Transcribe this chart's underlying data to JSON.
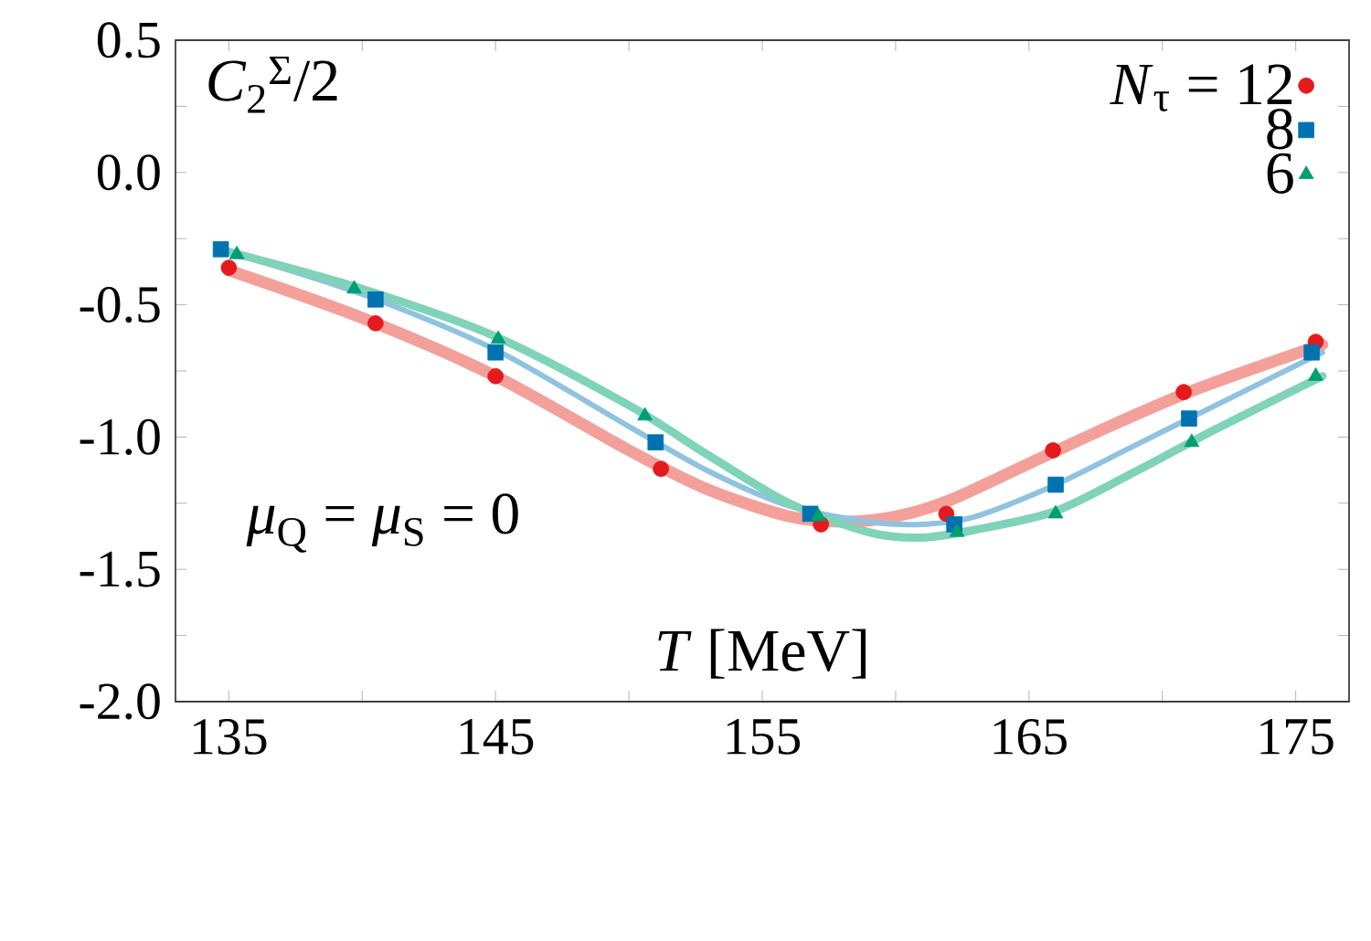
{
  "chart_data": {
    "type": "scatter",
    "ylabel": "*C*$_{2}$$^{Σ}$/2",
    "xlabel": "*T* [MeV]",
    "annotations": [
      "*μ*$_{Q}$ = *μ*$_{S}$ = 0"
    ],
    "xlim": [
      133,
      177
    ],
    "ylim": [
      -2.0,
      0.5
    ],
    "xticks": [
      135,
      {
        "value": 140,
        "label": null
      },
      145,
      {
        "value": 150,
        "label": null
      },
      155,
      {
        "value": 160,
        "label": null
      },
      165,
      {
        "value": 170,
        "label": null
      },
      175
    ],
    "yticks": [
      {
        "value": -2.0,
        "label": "-2.0"
      },
      {
        "value": -1.75,
        "label": null
      },
      {
        "value": -1.5,
        "label": "-1.5"
      },
      {
        "value": -1.25,
        "label": null
      },
      {
        "value": -1.0,
        "label": "-1.0"
      },
      {
        "value": -0.75,
        "label": null
      },
      {
        "value": -0.5,
        "label": "-0.5"
      },
      {
        "value": -0.25,
        "label": null
      },
      {
        "value": 0.0,
        "label": "0.0"
      },
      {
        "value": 0.25,
        "label": null
      },
      {
        "value": 0.5,
        "label": "0.5"
      }
    ],
    "legend": "top right",
    "grid": false,
    "series": [
      {
        "name": "*N*$_{τ}$ = 12",
        "marker": "circle",
        "color": "#e41a1c",
        "x": [
          135.0,
          140.5,
          145.0,
          151.2,
          157.2,
          161.9,
          165.9,
          170.8,
          175.75
        ],
        "values": [
          -0.36,
          -0.57,
          -0.77,
          -1.12,
          -1.33,
          -1.29,
          -1.05,
          -0.83,
          -0.64
        ]
      },
      {
        "name": "8",
        "marker": "square",
        "color": "#0072b2",
        "x": [
          134.7,
          140.5,
          145.0,
          151.0,
          156.8,
          162.2,
          166.0,
          171.0,
          175.6
        ],
        "values": [
          -0.29,
          -0.48,
          -0.68,
          -1.02,
          -1.29,
          -1.33,
          -1.18,
          -0.93,
          -0.68
        ]
      },
      {
        "name": "6",
        "marker": "triangle",
        "color": "#009e73",
        "x": [
          135.3,
          139.7,
          145.1,
          150.6,
          157.1,
          162.3,
          166.0,
          171.1,
          175.75
        ],
        "values": [
          -0.31,
          -0.44,
          -0.63,
          -0.92,
          -1.3,
          -1.36,
          -1.29,
          -1.02,
          -0.77
        ]
      },
      {
        "type": "line",
        "color": "#f4a09a",
        "x": [
          135,
          140,
          145,
          150,
          153,
          156,
          158,
          160,
          162,
          165,
          168,
          171,
          174,
          176
        ],
        "values": [
          -0.37,
          -0.55,
          -0.77,
          -1.05,
          -1.2,
          -1.3,
          -1.32,
          -1.3,
          -1.24,
          -1.1,
          -0.96,
          -0.83,
          -0.72,
          -0.65
        ]
      },
      {
        "type": "line",
        "color": "#8fc3e0",
        "x": [
          135,
          140,
          145,
          150,
          153,
          156,
          159,
          161,
          163,
          166,
          169,
          172,
          176
        ],
        "values": [
          -0.3,
          -0.46,
          -0.67,
          -0.96,
          -1.13,
          -1.26,
          -1.32,
          -1.33,
          -1.3,
          -1.18,
          -1.03,
          -0.88,
          -0.68
        ]
      },
      {
        "type": "line",
        "color": "#7fd3b8",
        "x": [
          135,
          140,
          145,
          150,
          153,
          156,
          159,
          161,
          163,
          166,
          169,
          172,
          176
        ],
        "values": [
          -0.3,
          -0.44,
          -0.62,
          -0.88,
          -1.07,
          -1.25,
          -1.36,
          -1.38,
          -1.35,
          -1.28,
          -1.13,
          -0.97,
          -0.77
        ]
      }
    ]
  }
}
